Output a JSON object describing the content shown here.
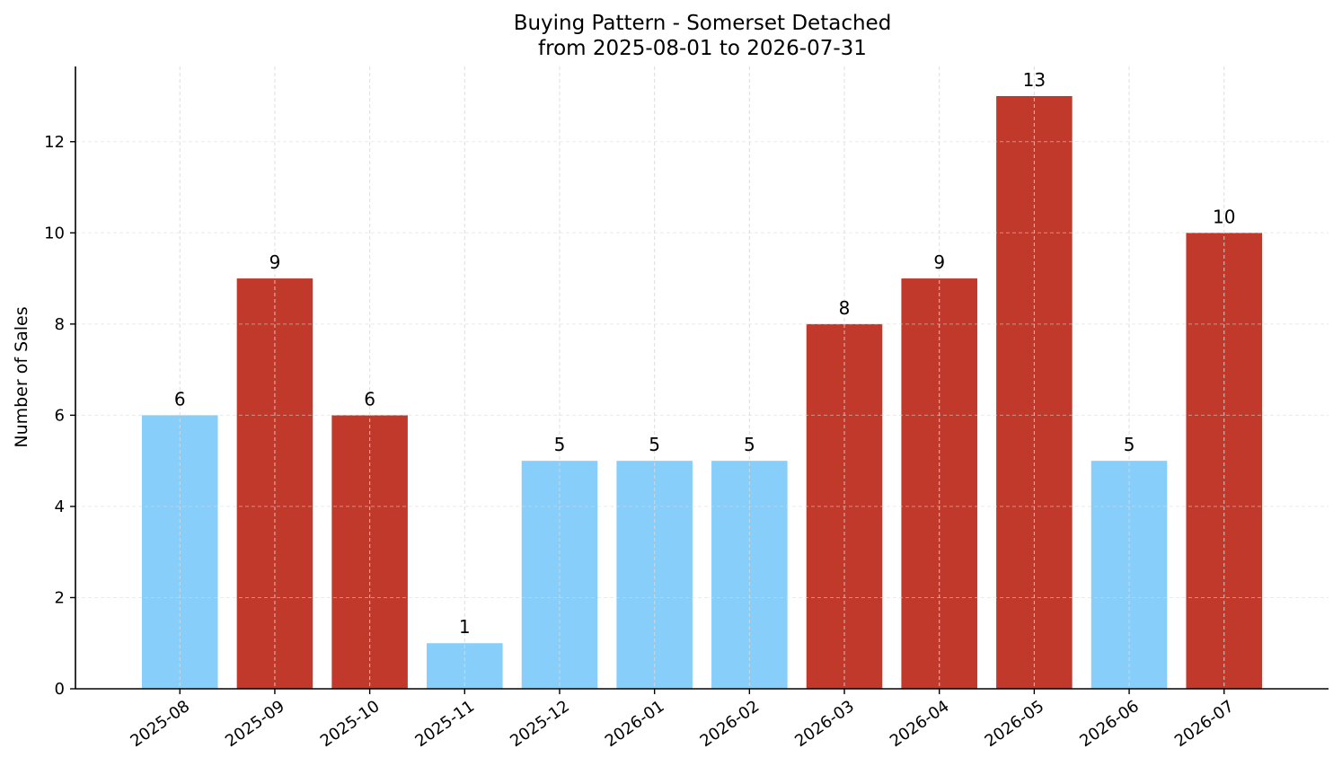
{
  "chart_data": {
    "type": "bar",
    "title": "Buying Pattern - Somerset Detached",
    "subtitle": "from 2025-08-01 to 2026-07-31",
    "xlabel": "",
    "ylabel": "Number of Sales",
    "categories": [
      "2025-08",
      "2025-09",
      "2025-10",
      "2025-11",
      "2025-12",
      "2026-01",
      "2026-02",
      "2026-03",
      "2026-04",
      "2026-05",
      "2026-06",
      "2026-07"
    ],
    "values": [
      6,
      9,
      6,
      1,
      5,
      5,
      5,
      8,
      9,
      13,
      5,
      10
    ],
    "colors": [
      "#87CEFA",
      "#C0392B",
      "#C0392B",
      "#87CEFA",
      "#87CEFA",
      "#87CEFA",
      "#87CEFA",
      "#C0392B",
      "#C0392B",
      "#C0392B",
      "#87CEFA",
      "#C0392B"
    ],
    "ylim": [
      0,
      13.65
    ],
    "yticks": [
      0,
      2,
      4,
      6,
      8,
      10,
      12
    ],
    "grid": true,
    "legend": "none"
  }
}
